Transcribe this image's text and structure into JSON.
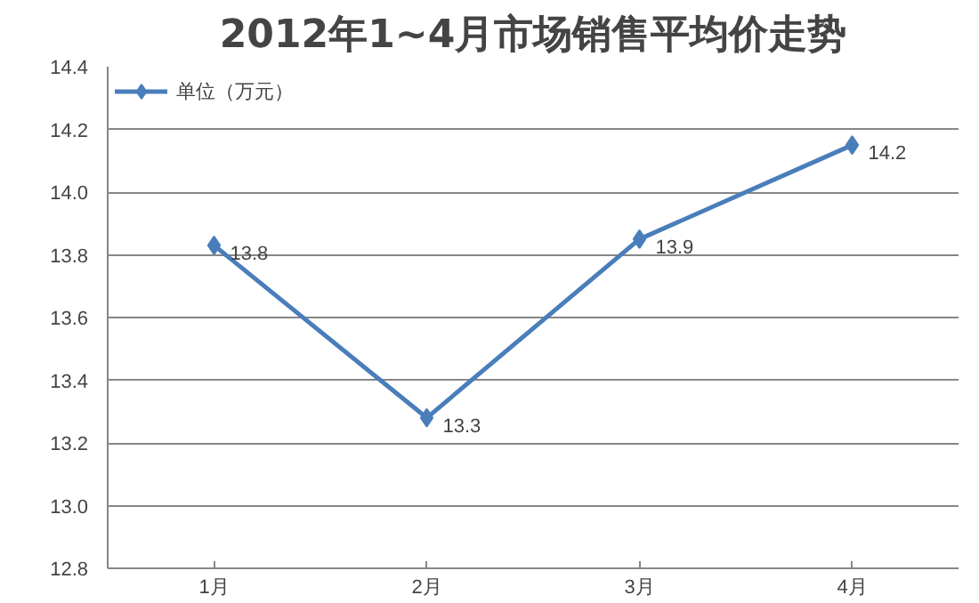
{
  "chart_data": {
    "type": "line",
    "title": "2012年1~4月市场销售平均价走势",
    "categories": [
      "1月",
      "2月",
      "3月",
      "4月"
    ],
    "series": [
      {
        "name": "单位（万元）",
        "color": "#4a7ebb",
        "values": [
          13.83,
          13.28,
          13.85,
          14.15
        ],
        "value_labels": [
          "13.8",
          "13.3",
          "13.9",
          "14.2"
        ]
      }
    ],
    "ylim": [
      12.8,
      14.4
    ],
    "yticks": [
      {
        "value": 12.8,
        "label": "12.8"
      },
      {
        "value": 13.0,
        "label": "13.0"
      },
      {
        "value": 13.2,
        "label": "13.2"
      },
      {
        "value": 13.4,
        "label": "13.4"
      },
      {
        "value": 13.6,
        "label": "13.6"
      },
      {
        "value": 13.8,
        "label": "13.8"
      },
      {
        "value": 14.0,
        "label": "14.0"
      },
      {
        "value": 14.2,
        "label": "14.2"
      },
      {
        "value": 14.4,
        "label": "14.4"
      }
    ],
    "grid": "y",
    "legend": "top left",
    "marker": "diamond",
    "line_style": "solid"
  }
}
